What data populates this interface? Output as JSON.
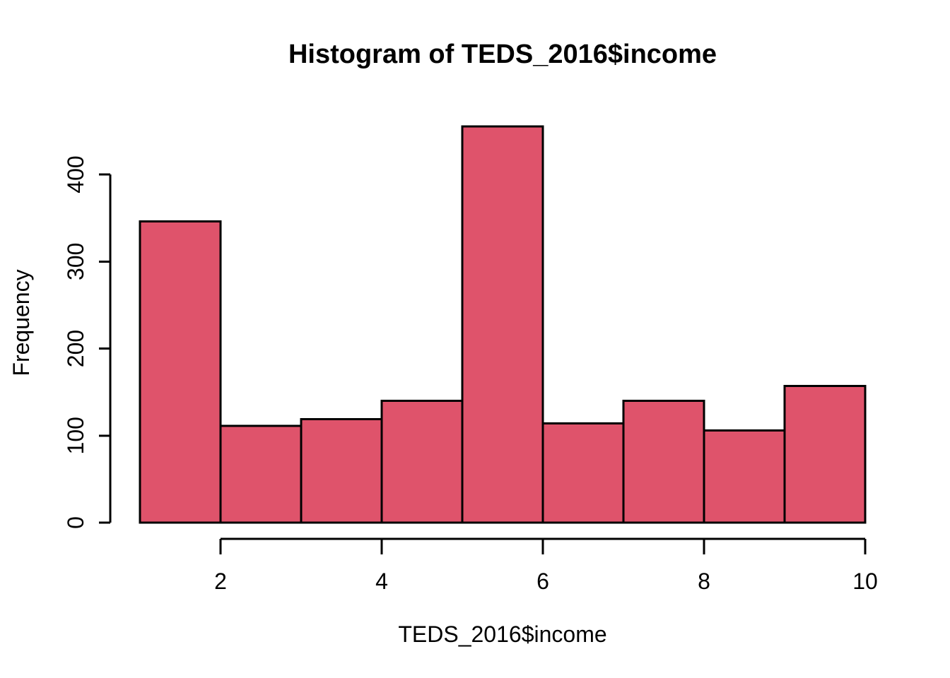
{
  "chart_data": {
    "type": "bar",
    "subtype": "histogram",
    "title": "Histogram of TEDS_2016$income",
    "xlabel": "TEDS_2016$income",
    "ylabel": "Frequency",
    "bin_edges": [
      1,
      2,
      3,
      4,
      5,
      6,
      7,
      8,
      9,
      10
    ],
    "categories": [
      "1-2",
      "2-3",
      "3-4",
      "4-5",
      "5-6",
      "6-7",
      "7-8",
      "8-9",
      "9-10"
    ],
    "values": [
      346,
      111,
      119,
      140,
      455,
      114,
      140,
      106,
      157
    ],
    "x_ticks": [
      2,
      4,
      6,
      8,
      10
    ],
    "y_ticks": [
      0,
      100,
      200,
      300,
      400
    ],
    "xlim": [
      1,
      10
    ],
    "ylim": [
      0,
      460
    ],
    "grid": false,
    "legend": "none",
    "colors": {
      "bar_fill": "#DF536B",
      "bar_border": "#000000",
      "axis": "#000000",
      "text": "#000000",
      "background": "#FFFFFF"
    }
  }
}
